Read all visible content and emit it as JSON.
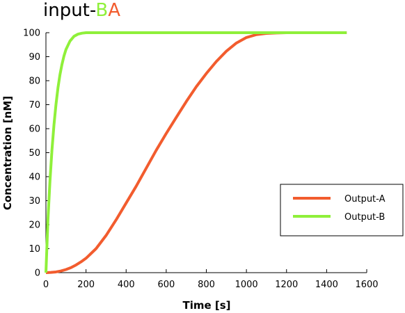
{
  "title": {
    "prefix": "input-",
    "part_b": "B",
    "part_a": "A"
  },
  "colors": {
    "output_a": "#f25c2e",
    "output_b": "#8ff03a",
    "axis": "#000000",
    "background": "#ffffff"
  },
  "chart_data": {
    "type": "line",
    "title": "input-BA",
    "xlabel": "Time [s]",
    "ylabel": "Concentration [nM]",
    "xlim": [
      0,
      1600
    ],
    "ylim": [
      0,
      100
    ],
    "x_ticks": [
      0,
      200,
      400,
      600,
      800,
      1000,
      1200,
      1400,
      1600
    ],
    "y_ticks": [
      0,
      10,
      20,
      30,
      40,
      50,
      60,
      70,
      80,
      90,
      100
    ],
    "grid": false,
    "legend_position": "right",
    "series": [
      {
        "name": "Output-A",
        "color": "#f25c2e",
        "x": [
          0,
          25,
          50,
          75,
          100,
          125,
          150,
          175,
          200,
          250,
          300,
          350,
          400,
          450,
          500,
          550,
          600,
          650,
          700,
          750,
          800,
          850,
          900,
          950,
          1000,
          1050,
          1100,
          1150,
          1200,
          1250,
          1300,
          1350,
          1400,
          1450,
          1500
        ],
        "y": [
          0,
          0.1,
          0.3,
          0.7,
          1.3,
          2.1,
          3.2,
          4.5,
          6,
          10,
          15.5,
          22,
          29,
          36,
          43.5,
          51,
          58,
          64.7,
          71.3,
          77.5,
          83,
          88,
          92.3,
          95.7,
          98,
          99.2,
          99.7,
          99.9,
          100,
          100,
          100,
          100,
          100,
          100,
          100
        ]
      },
      {
        "name": "Output-B",
        "color": "#8ff03a",
        "x": [
          0,
          10,
          20,
          30,
          40,
          50,
          60,
          70,
          80,
          90,
          100,
          120,
          140,
          160,
          180,
          200,
          220,
          250,
          300,
          400,
          600,
          800,
          1000,
          1200,
          1400,
          1500
        ],
        "y": [
          0,
          22,
          38,
          51,
          61.5,
          70,
          77,
          82.5,
          86.8,
          90.3,
          93,
          96.5,
          98.5,
          99.4,
          99.8,
          100,
          100,
          100,
          100,
          100,
          100,
          100,
          100,
          100,
          100,
          100
        ]
      }
    ]
  }
}
